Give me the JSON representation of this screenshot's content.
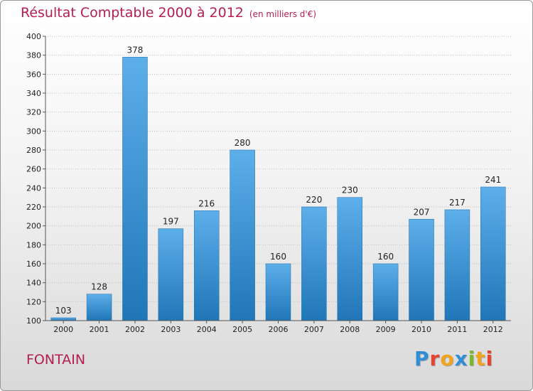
{
  "title": "Résultat Comptable 2000 à 2012",
  "subtitle": "(en milliers d'€)",
  "commune": "FONTAIN",
  "logo": {
    "text": "Proxiti",
    "colors": [
      "#2f8fd6",
      "#e8432d",
      "#f0a31c",
      "#2f8fd6",
      "#7ab929",
      "#f0a31c",
      "#e8432d"
    ]
  },
  "colors": {
    "title": "#b51e4f",
    "bar_top": "#5dafea",
    "bar_bottom": "#2076b7",
    "axis": "#555555",
    "grid": "#bdbdbd"
  },
  "chart_data": {
    "type": "bar",
    "categories": [
      "2000",
      "2001",
      "2002",
      "2003",
      "2004",
      "2005",
      "2006",
      "2007",
      "2008",
      "2009",
      "2010",
      "2011",
      "2012"
    ],
    "values": [
      103,
      128,
      378,
      197,
      216,
      280,
      160,
      220,
      230,
      160,
      207,
      217,
      241
    ],
    "title": "Résultat Comptable 2000 à 2012",
    "xlabel": "",
    "ylabel": "",
    "ylim": [
      100,
      400
    ],
    "yticks": [
      100,
      120,
      140,
      160,
      180,
      200,
      220,
      240,
      260,
      280,
      300,
      320,
      340,
      360,
      380,
      400
    ],
    "grid": "horizontal",
    "legend": "none"
  }
}
